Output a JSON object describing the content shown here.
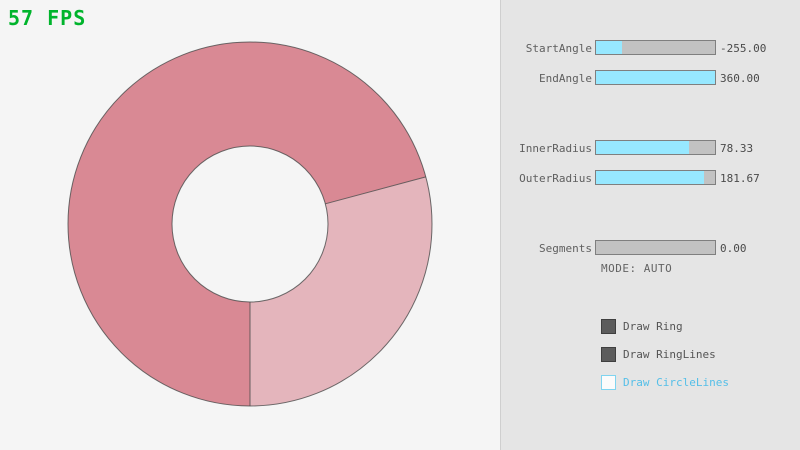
{
  "fps": {
    "text": "57 FPS",
    "color": "#00b42c"
  },
  "ring": {
    "dark_color": "#d98994",
    "light_color": "#e4b5bc",
    "outline_color": "#4a4a4a"
  },
  "panel": {
    "sliders": [
      {
        "label": "StartAngle",
        "value": "-255.00",
        "fill_pct": 22
      },
      {
        "label": "EndAngle",
        "value": "360.00",
        "fill_pct": 100
      },
      {
        "label": "InnerRadius",
        "value": "78.33",
        "fill_pct": 78
      },
      {
        "label": "OuterRadius",
        "value": "181.67",
        "fill_pct": 91
      },
      {
        "label": "Segments",
        "value": "0.00",
        "fill_pct": 0
      }
    ],
    "mode_text": "MODE: AUTO",
    "checkboxes": [
      {
        "label": "Draw Ring",
        "checked": true
      },
      {
        "label": "Draw RingLines",
        "checked": true
      },
      {
        "label": "Draw CircleLines",
        "checked": false
      }
    ],
    "colors": {
      "slider_fill": "#97e8ff",
      "accent_text": "#55bfe8"
    }
  }
}
